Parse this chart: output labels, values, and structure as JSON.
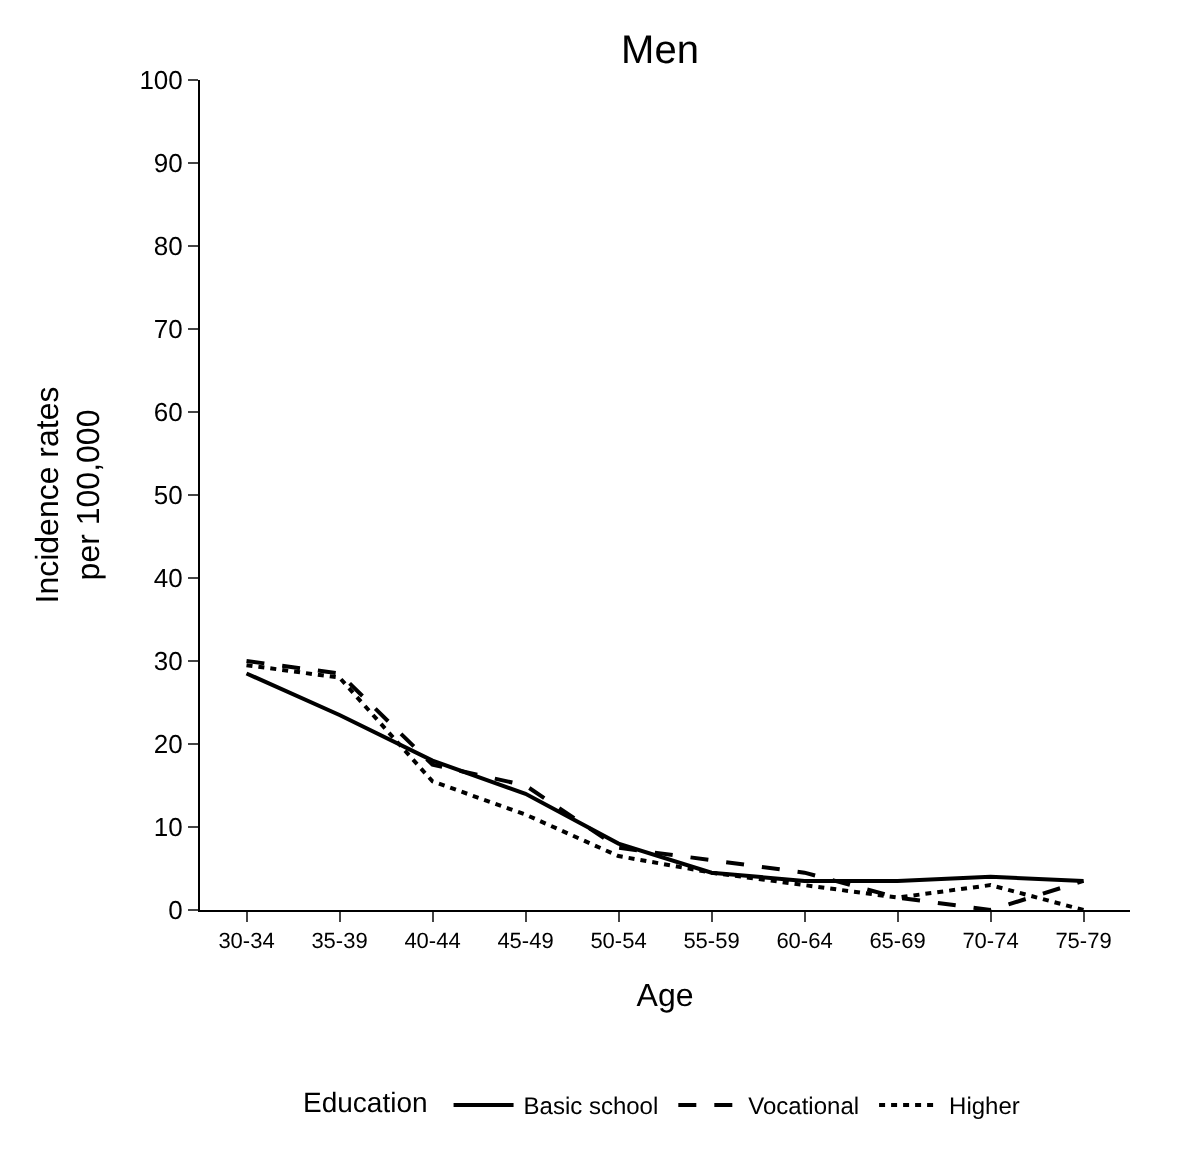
{
  "chart_data": {
    "type": "line",
    "title": "Men",
    "xlabel": "Age",
    "ylabel": "Incidence rates\nper 100,000",
    "legend_title": "Education",
    "categories": [
      "30-34",
      "35-39",
      "40-44",
      "45-49",
      "50-54",
      "55-59",
      "60-64",
      "65-69",
      "70-74",
      "75-79"
    ],
    "series": [
      {
        "name": "Basic school",
        "color": "#000000",
        "line_style": "solid",
        "values": [
          28.5,
          23.5,
          18,
          14,
          8,
          4.5,
          3.5,
          3.5,
          4,
          3.5
        ]
      },
      {
        "name": "Vocational",
        "color": "#000000",
        "line_style": "dashed",
        "values": [
          30,
          28.5,
          17.5,
          15,
          7.5,
          6,
          4.5,
          1.5,
          0,
          3.5
        ]
      },
      {
        "name": "Higher",
        "color": "#000000",
        "line_style": "dotted",
        "values": [
          29.5,
          28,
          15.5,
          11.5,
          6.5,
          4.5,
          3,
          1.5,
          3,
          0
        ]
      }
    ],
    "ylim": [
      0,
      100
    ],
    "yticks": [
      0,
      10,
      20,
      30,
      40,
      50,
      60,
      70,
      80,
      90,
      100
    ],
    "legend": "bottom",
    "marker": "none"
  }
}
